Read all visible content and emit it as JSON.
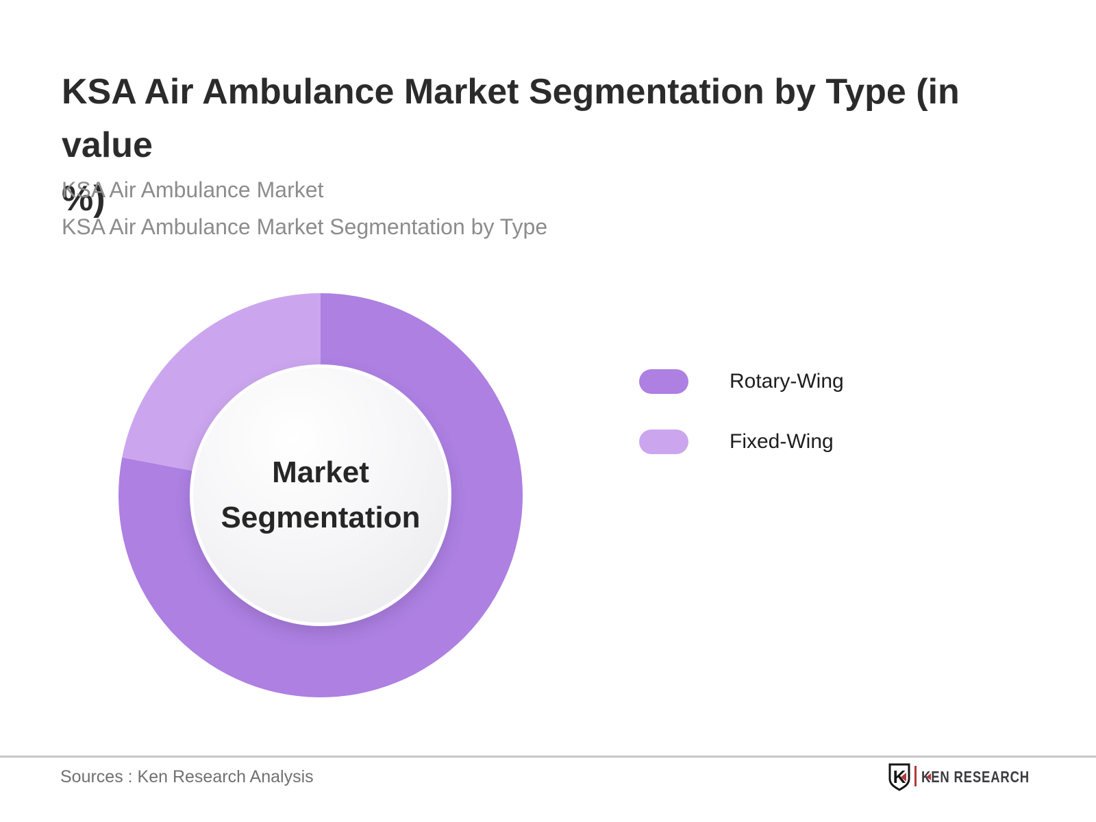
{
  "header": {
    "title_lines": [
      "KSA Air Ambulance Market Segmentation by Type (in value",
      "%)"
    ],
    "subtitle_lines": [
      "KSA Air Ambulance Market",
      "KSA Air Ambulance Market Segmentation by Type"
    ]
  },
  "chart_data": {
    "type": "pie",
    "subtype": "donut",
    "title": "KSA Air Ambulance Market Segmentation by Type (in value %)",
    "center_label": "Market Segmentation",
    "start_angle_deg": 0,
    "direction": "clockwise",
    "inner_radius_ratio": 0.645,
    "legend_position": "right",
    "data_labels_shown": false,
    "series": [
      {
        "name": "Rotary-Wing",
        "value": 78,
        "color": "#ad80e2"
      },
      {
        "name": "Fixed-Wing",
        "value": 22,
        "color": "#cba6ee"
      }
    ]
  },
  "legend": {
    "items": [
      {
        "label": "Rotary-Wing",
        "color": "#ad80e2"
      },
      {
        "label": "Fixed-Wing",
        "color": "#cba6ee"
      }
    ]
  },
  "footer": {
    "source_text": "Sources : Ken Research Analysis",
    "logo_shield_letter": "K",
    "logo_text": "KEN RESEARCH"
  }
}
